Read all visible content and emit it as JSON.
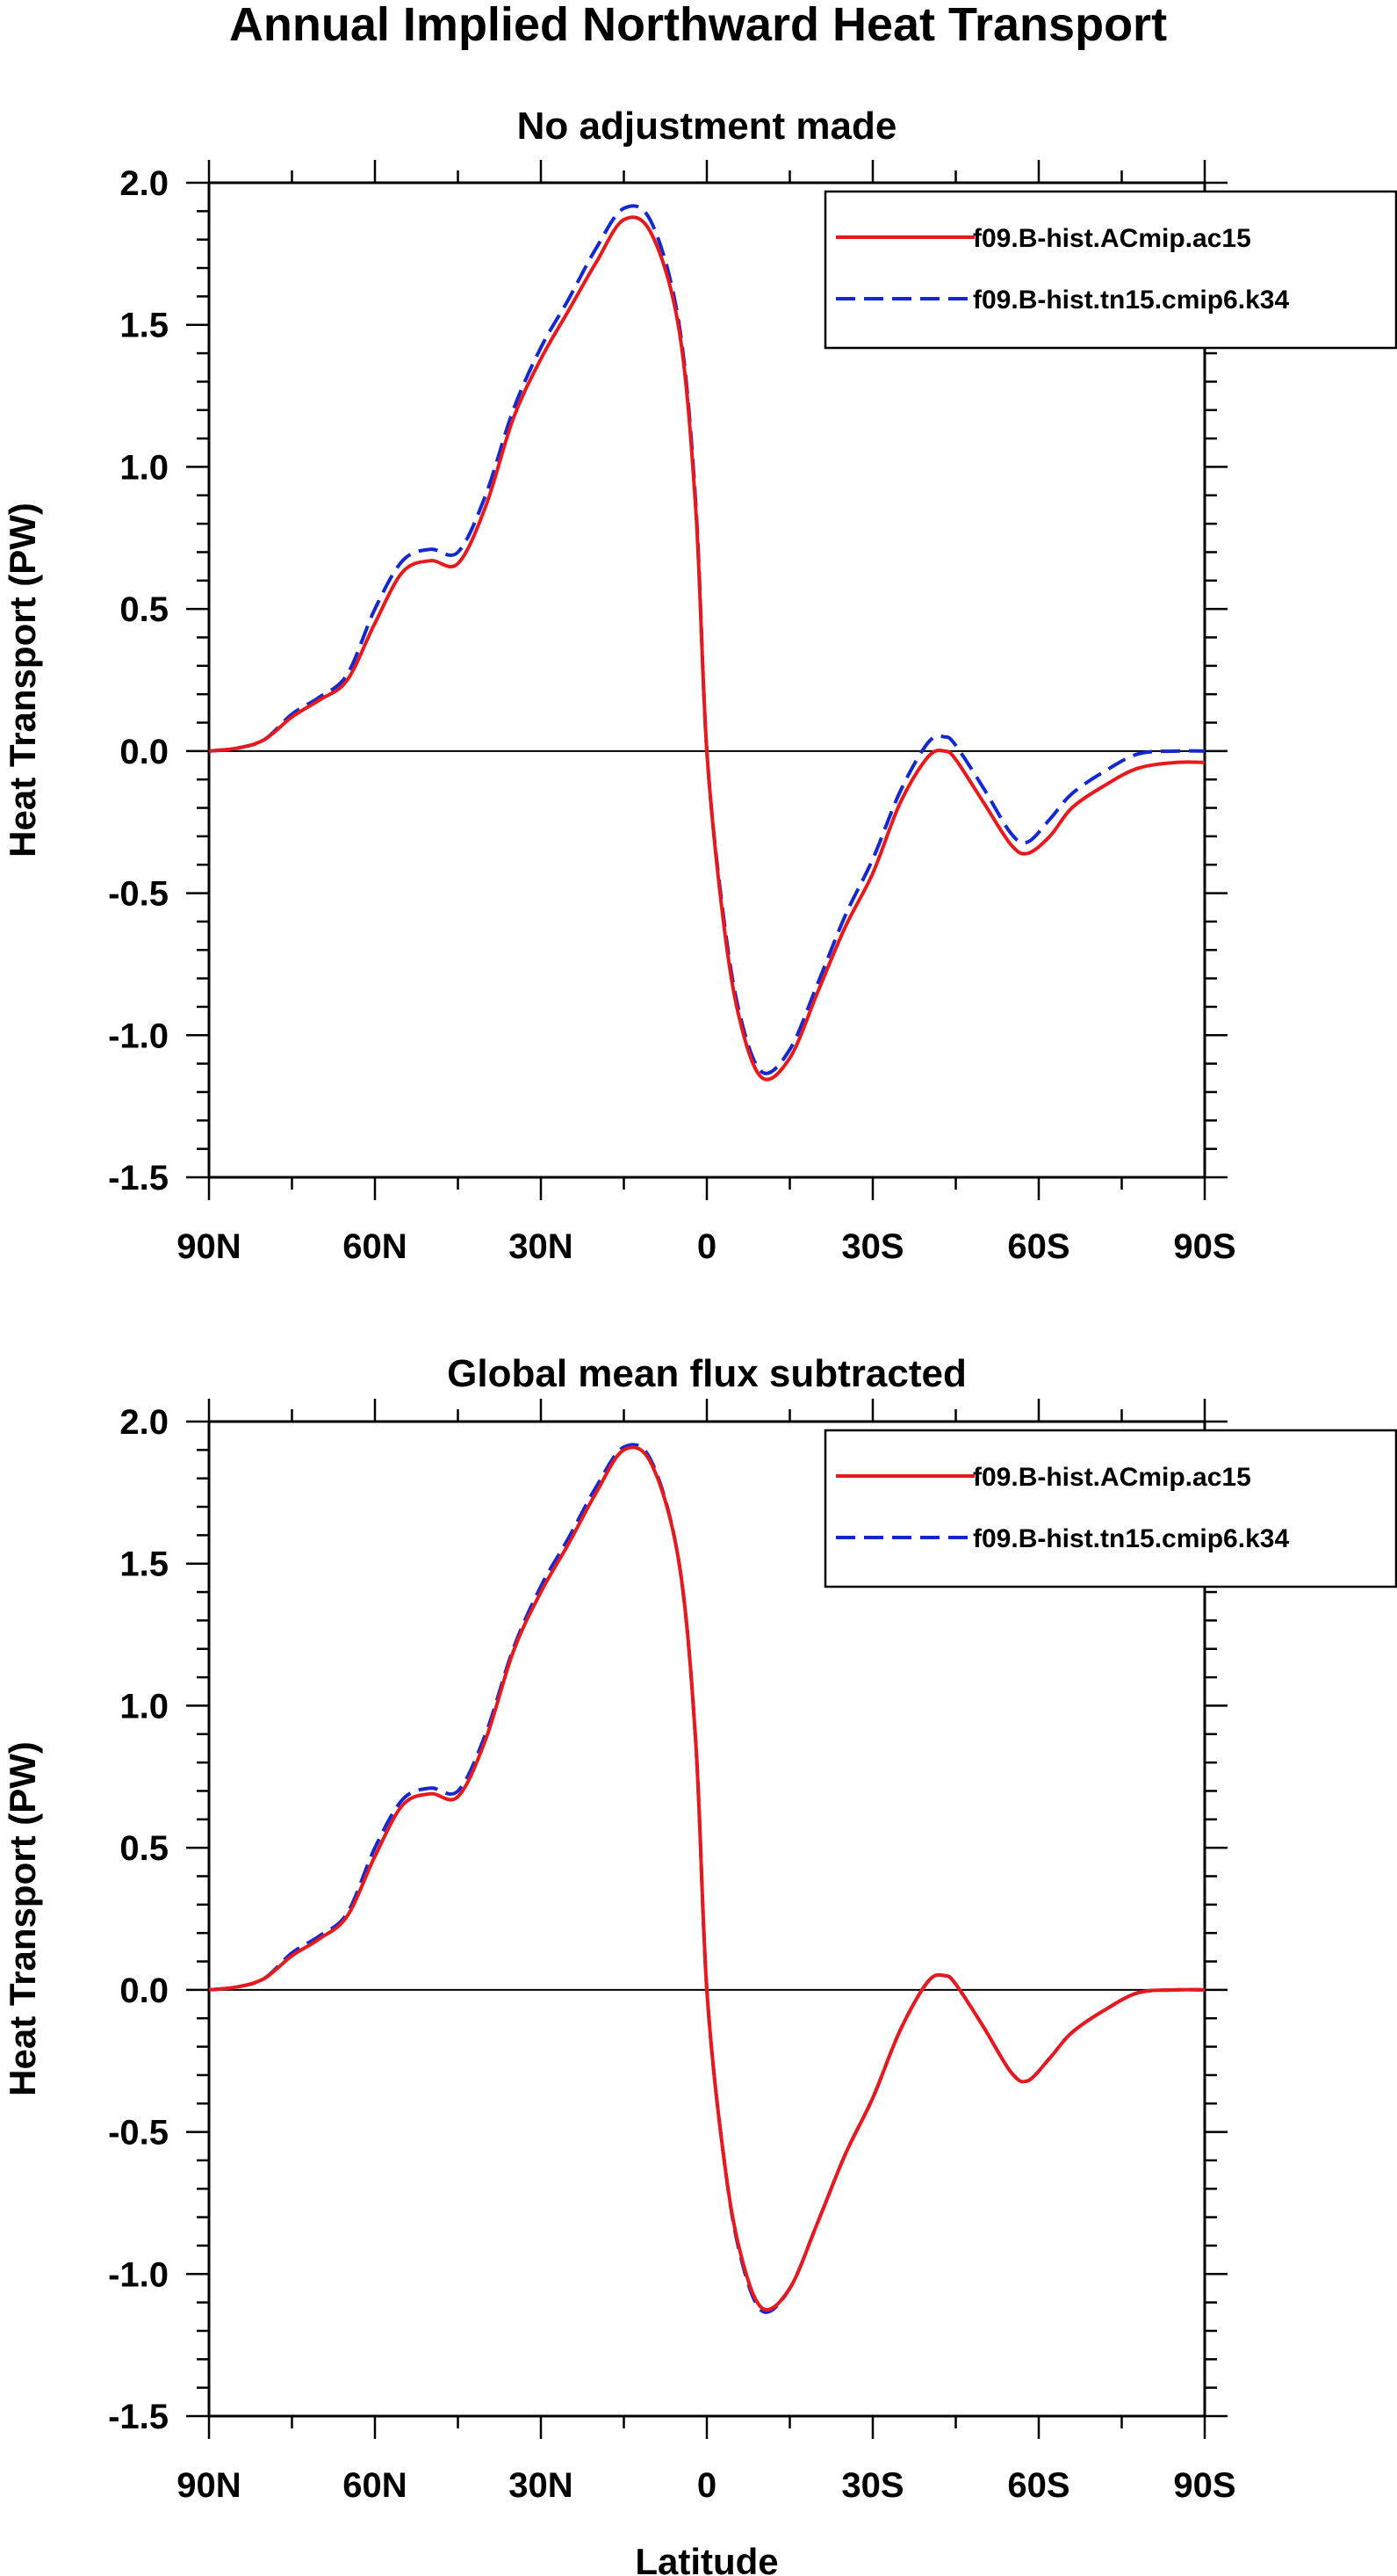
{
  "figure_title": "Annual Implied Northward Heat Transport",
  "chart_data": [
    {
      "type": "line",
      "title": "No adjustment made",
      "xlabel": "",
      "ylabel": "Heat Transport (PW)",
      "x_ticks": [
        {
          "lat": 90,
          "label": "90N"
        },
        {
          "lat": 60,
          "label": "60N"
        },
        {
          "lat": 30,
          "label": "30N"
        },
        {
          "lat": 0,
          "label": "0"
        },
        {
          "lat": -30,
          "label": "30S"
        },
        {
          "lat": -60,
          "label": "60S"
        },
        {
          "lat": -90,
          "label": "90S"
        }
      ],
      "y_ticks": [
        {
          "value": 2.0,
          "label": "2.0"
        },
        {
          "value": 1.5,
          "label": "1.5"
        },
        {
          "value": 1.0,
          "label": "1.0"
        },
        {
          "value": 0.5,
          "label": "0.5"
        },
        {
          "value": 0.0,
          "label": "0.0"
        },
        {
          "value": -0.5,
          "label": "-0.5"
        },
        {
          "value": -1.0,
          "label": "-1.0"
        },
        {
          "value": -1.5,
          "label": "-1.5"
        }
      ],
      "xlim": [
        90,
        -90
      ],
      "ylim": [
        -1.5,
        2.0
      ],
      "legend_position": "top-right",
      "series": [
        {
          "name": "f09.B-hist.ACmip.ac15",
          "color": "#e8191c",
          "dash": "solid",
          "x": [
            90,
            85,
            80,
            75,
            70,
            65,
            60,
            55,
            50,
            45,
            40,
            35,
            30,
            25,
            20,
            15,
            10,
            5,
            2,
            0,
            -3,
            -6,
            -10,
            -15,
            -20,
            -25,
            -30,
            -35,
            -40,
            -43,
            -45,
            -50,
            -55,
            -58,
            -62,
            -66,
            -72,
            -78,
            -85,
            -90
          ],
          "values": [
            0.0,
            0.01,
            0.04,
            0.12,
            0.18,
            0.25,
            0.45,
            0.63,
            0.67,
            0.66,
            0.86,
            1.17,
            1.38,
            1.55,
            1.72,
            1.87,
            1.82,
            1.48,
            0.85,
            0.0,
            -0.6,
            -0.95,
            -1.15,
            -1.08,
            -0.85,
            -0.62,
            -0.43,
            -0.18,
            -0.02,
            0.0,
            -0.03,
            -0.18,
            -0.33,
            -0.36,
            -0.3,
            -0.2,
            -0.12,
            -0.06,
            -0.04,
            -0.04
          ]
        },
        {
          "name": "f09.B-hist.tn15.cmip6.k34",
          "color": "#1428d2",
          "dash": "dashed",
          "x": [
            90,
            85,
            80,
            75,
            70,
            65,
            60,
            55,
            50,
            45,
            40,
            35,
            30,
            25,
            20,
            15,
            10,
            5,
            2,
            0,
            -3,
            -6,
            -10,
            -15,
            -20,
            -25,
            -30,
            -35,
            -40,
            -43,
            -45,
            -50,
            -55,
            -58,
            -62,
            -66,
            -72,
            -78,
            -85,
            -90
          ],
          "values": [
            0.0,
            0.01,
            0.04,
            0.13,
            0.19,
            0.27,
            0.5,
            0.67,
            0.71,
            0.7,
            0.9,
            1.2,
            1.42,
            1.59,
            1.77,
            1.91,
            1.86,
            1.5,
            0.87,
            0.0,
            -0.58,
            -0.93,
            -1.13,
            -1.05,
            -0.82,
            -0.58,
            -0.38,
            -0.14,
            0.03,
            0.05,
            0.02,
            -0.13,
            -0.29,
            -0.32,
            -0.24,
            -0.15,
            -0.07,
            -0.01,
            0.0,
            0.0
          ]
        }
      ]
    },
    {
      "type": "line",
      "title": "Global mean flux subtracted",
      "xlabel": "Latitude",
      "ylabel": "Heat Transport (PW)",
      "x_ticks": [
        {
          "lat": 90,
          "label": "90N"
        },
        {
          "lat": 60,
          "label": "60N"
        },
        {
          "lat": 30,
          "label": "30N"
        },
        {
          "lat": 0,
          "label": "0"
        },
        {
          "lat": -30,
          "label": "30S"
        },
        {
          "lat": -60,
          "label": "60S"
        },
        {
          "lat": -90,
          "label": "90S"
        }
      ],
      "y_ticks": [
        {
          "value": 2.0,
          "label": "2.0"
        },
        {
          "value": 1.5,
          "label": "1.5"
        },
        {
          "value": 1.0,
          "label": "1.0"
        },
        {
          "value": 0.5,
          "label": "0.5"
        },
        {
          "value": 0.0,
          "label": "0.0"
        },
        {
          "value": -0.5,
          "label": "-0.5"
        },
        {
          "value": -1.0,
          "label": "-1.0"
        },
        {
          "value": -1.5,
          "label": "-1.5"
        }
      ],
      "xlim": [
        90,
        -90
      ],
      "ylim": [
        -1.5,
        2.0
      ],
      "legend_position": "top-right",
      "series": [
        {
          "name": "f09.B-hist.ACmip.ac15",
          "color": "#e8191c",
          "dash": "solid",
          "x": [
            90,
            85,
            80,
            75,
            70,
            65,
            60,
            55,
            50,
            45,
            40,
            35,
            30,
            25,
            20,
            15,
            10,
            5,
            2,
            0,
            -3,
            -6,
            -10,
            -15,
            -20,
            -25,
            -30,
            -35,
            -40,
            -43,
            -45,
            -50,
            -55,
            -58,
            -62,
            -66,
            -72,
            -78,
            -85,
            -90
          ],
          "values": [
            0.0,
            0.01,
            0.04,
            0.12,
            0.18,
            0.26,
            0.47,
            0.65,
            0.69,
            0.68,
            0.88,
            1.19,
            1.4,
            1.57,
            1.75,
            1.9,
            1.85,
            1.5,
            0.87,
            0.0,
            -0.58,
            -0.92,
            -1.12,
            -1.05,
            -0.82,
            -0.58,
            -0.38,
            -0.14,
            0.03,
            0.05,
            0.02,
            -0.13,
            -0.29,
            -0.32,
            -0.24,
            -0.15,
            -0.07,
            -0.01,
            0.0,
            0.0
          ]
        },
        {
          "name": "f09.B-hist.tn15.cmip6.k34",
          "color": "#1428d2",
          "dash": "dashed",
          "x": [
            90,
            85,
            80,
            75,
            70,
            65,
            60,
            55,
            50,
            45,
            40,
            35,
            30,
            25,
            20,
            15,
            10,
            5,
            2,
            0,
            -3,
            -6,
            -10,
            -15,
            -20,
            -25,
            -30,
            -35,
            -40,
            -43,
            -45,
            -50,
            -55,
            -58,
            -62,
            -66,
            -72,
            -78,
            -85,
            -90
          ],
          "values": [
            0.0,
            0.01,
            0.04,
            0.13,
            0.19,
            0.27,
            0.5,
            0.67,
            0.71,
            0.7,
            0.9,
            1.2,
            1.42,
            1.59,
            1.77,
            1.91,
            1.86,
            1.5,
            0.87,
            0.0,
            -0.58,
            -0.93,
            -1.13,
            -1.05,
            -0.82,
            -0.58,
            -0.38,
            -0.14,
            0.03,
            0.05,
            0.02,
            -0.13,
            -0.29,
            -0.32,
            -0.24,
            -0.15,
            -0.07,
            -0.01,
            0.0,
            0.0
          ]
        }
      ]
    }
  ]
}
